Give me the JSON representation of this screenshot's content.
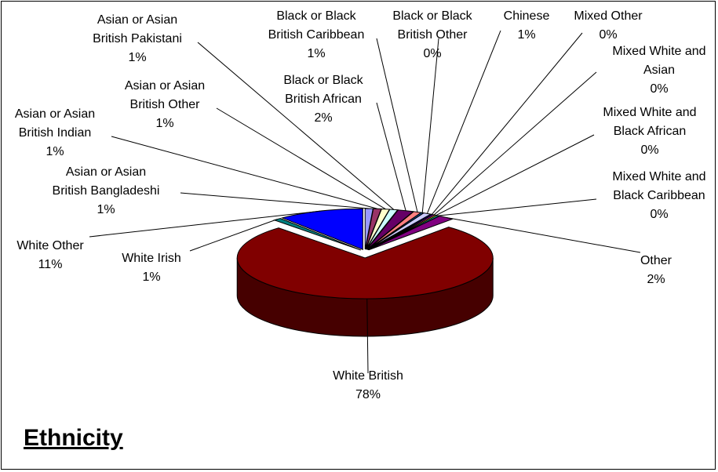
{
  "title": "Ethnicity",
  "chart_data": {
    "type": "pie",
    "title": "Ethnicity",
    "three_d": true,
    "exploded": true,
    "slices": [
      {
        "label": "Asian or Asian British Bangladeshi",
        "pct_label": "1%",
        "value": 1,
        "color": "#9999ff"
      },
      {
        "label": "Asian or Asian British Indian",
        "pct_label": "1%",
        "value": 1,
        "color": "#993366"
      },
      {
        "label": "Asian or Asian British Other",
        "pct_label": "1%",
        "value": 1,
        "color": "#ffffcc"
      },
      {
        "label": "Asian or Asian British Pakistani",
        "pct_label": "1%",
        "value": 1,
        "color": "#ccffff"
      },
      {
        "label": "Black or Black British African",
        "pct_label": "2%",
        "value": 2,
        "color": "#660066"
      },
      {
        "label": "Black or Black British Caribbean",
        "pct_label": "1%",
        "value": 1,
        "color": "#ff8080"
      },
      {
        "label": "Black or Black British Other",
        "pct_label": "0%",
        "value": 0.3,
        "color": "#0066cc"
      },
      {
        "label": "Chinese",
        "pct_label": "1%",
        "value": 1,
        "color": "#ccccff"
      },
      {
        "label": "Mixed Other",
        "pct_label": "0%",
        "value": 0.3,
        "color": "#000080"
      },
      {
        "label": "Mixed White and Asian",
        "pct_label": "0%",
        "value": 0.3,
        "color": "#ff00ff"
      },
      {
        "label": "Mixed White and Black African",
        "pct_label": "0%",
        "value": 0.3,
        "color": "#ffff00"
      },
      {
        "label": "Mixed White and Black Caribbean",
        "pct_label": "0%",
        "value": 0.3,
        "color": "#00ffff"
      },
      {
        "label": "Other",
        "pct_label": "2%",
        "value": 2,
        "color": "#800080"
      },
      {
        "label": "White British",
        "pct_label": "78%",
        "value": 78,
        "color": "#800000"
      },
      {
        "label": "White Irish",
        "pct_label": "1%",
        "value": 1,
        "color": "#008080"
      },
      {
        "label": "White Other",
        "pct_label": "11%",
        "value": 11,
        "color": "#0000ff"
      }
    ],
    "labels": [
      {
        "lines": [
          "Asian or Asian",
          "British Bangladeshi",
          "1%"
        ]
      },
      {
        "lines": [
          "Asian or Asian",
          "British Indian",
          "1%"
        ]
      },
      {
        "lines": [
          "Asian or Asian",
          "British Other",
          "1%"
        ]
      },
      {
        "lines": [
          "Asian or Asian",
          "British Pakistani",
          "1%"
        ]
      },
      {
        "lines": [
          "Black or Black",
          "British African",
          "2%"
        ]
      },
      {
        "lines": [
          "Black or Black",
          "British Caribbean",
          "1%"
        ]
      },
      {
        "lines": [
          "Black or Black",
          "British Other",
          "0%"
        ]
      },
      {
        "lines": [
          "Chinese",
          "1%"
        ]
      },
      {
        "lines": [
          "Mixed Other",
          "0%"
        ]
      },
      {
        "lines": [
          "Mixed White and",
          "Asian",
          "0%"
        ]
      },
      {
        "lines": [
          "Mixed White and",
          "Black African",
          "0%"
        ]
      },
      {
        "lines": [
          "Mixed White and",
          "Black Caribbean",
          "0%"
        ]
      },
      {
        "lines": [
          "Other",
          "2%"
        ]
      },
      {
        "lines": [
          "White British",
          "78%"
        ]
      },
      {
        "lines": [
          "White Irish",
          "1%"
        ]
      },
      {
        "lines": [
          "White Other",
          "11%"
        ]
      }
    ],
    "legend": "none"
  }
}
